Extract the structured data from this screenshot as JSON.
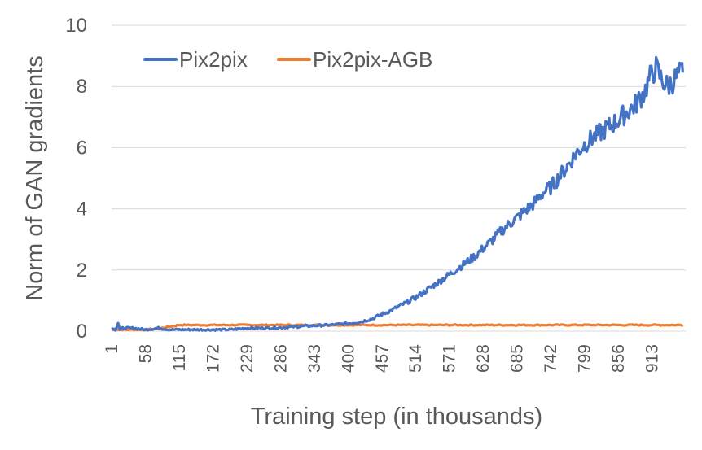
{
  "chart_data": {
    "type": "line",
    "title": "",
    "xlabel": "Training step (in thousands)",
    "ylabel": "Norm of GAN gradients",
    "ylim": [
      0,
      10
    ],
    "y_ticks": [
      "0",
      "2",
      "4",
      "6",
      "8",
      "10"
    ],
    "x_ticks": [
      "1",
      "58",
      "115",
      "172",
      "229",
      "286",
      "343",
      "400",
      "457",
      "514",
      "571",
      "628",
      "685",
      "742",
      "799",
      "856",
      "913"
    ],
    "xlim": [
      1,
      970
    ],
    "grid": "horizontal",
    "legend_position": "top-left",
    "series": [
      {
        "name": "Pix2pix",
        "color": "#4472c4",
        "points": [
          [
            1,
            0.1
          ],
          [
            8,
            0.05
          ],
          [
            12,
            0.3
          ],
          [
            15,
            0.05
          ],
          [
            20,
            0.1
          ],
          [
            30,
            0.1
          ],
          [
            40,
            0.1
          ],
          [
            58,
            0.05
          ],
          [
            80,
            0.1
          ],
          [
            100,
            0.05
          ],
          [
            115,
            0.05
          ],
          [
            140,
            0.05
          ],
          [
            172,
            0.05
          ],
          [
            200,
            0.05
          ],
          [
            229,
            0.1
          ],
          [
            260,
            0.1
          ],
          [
            286,
            0.12
          ],
          [
            315,
            0.15
          ],
          [
            343,
            0.18
          ],
          [
            370,
            0.2
          ],
          [
            400,
            0.25
          ],
          [
            420,
            0.3
          ],
          [
            440,
            0.4
          ],
          [
            457,
            0.55
          ],
          [
            470,
            0.65
          ],
          [
            485,
            0.8
          ],
          [
            500,
            0.95
          ],
          [
            514,
            1.1
          ],
          [
            530,
            1.3
          ],
          [
            545,
            1.5
          ],
          [
            560,
            1.7
          ],
          [
            571,
            1.85
          ],
          [
            585,
            2.05
          ],
          [
            600,
            2.25
          ],
          [
            614,
            2.45
          ],
          [
            628,
            2.7
          ],
          [
            645,
            3.0
          ],
          [
            660,
            3.3
          ],
          [
            675,
            3.55
          ],
          [
            685,
            3.7
          ],
          [
            700,
            3.95
          ],
          [
            715,
            4.2
          ],
          [
            728,
            4.5
          ],
          [
            742,
            4.7
          ],
          [
            755,
            5.0
          ],
          [
            770,
            5.4
          ],
          [
            785,
            5.8
          ],
          [
            799,
            6.1
          ],
          [
            812,
            6.3
          ],
          [
            827,
            6.5
          ],
          [
            842,
            6.7
          ],
          [
            856,
            6.9
          ],
          [
            870,
            7.15
          ],
          [
            885,
            7.4
          ],
          [
            900,
            7.8
          ],
          [
            910,
            8.3
          ],
          [
            920,
            8.6
          ],
          [
            930,
            8.2
          ],
          [
            940,
            8.0
          ],
          [
            950,
            8.2
          ],
          [
            958,
            8.4
          ],
          [
            965,
            8.45
          ]
        ]
      },
      {
        "name": "Pix2pix-AGB",
        "color": "#ed7d31",
        "points": [
          [
            1,
            0.05
          ],
          [
            30,
            0.05
          ],
          [
            58,
            0.05
          ],
          [
            80,
            0.08
          ],
          [
            100,
            0.15
          ],
          [
            115,
            0.2
          ],
          [
            172,
            0.2
          ],
          [
            229,
            0.2
          ],
          [
            286,
            0.2
          ],
          [
            343,
            0.2
          ],
          [
            400,
            0.2
          ],
          [
            457,
            0.2
          ],
          [
            514,
            0.2
          ],
          [
            571,
            0.2
          ],
          [
            628,
            0.2
          ],
          [
            685,
            0.2
          ],
          [
            742,
            0.2
          ],
          [
            799,
            0.2
          ],
          [
            856,
            0.2
          ],
          [
            913,
            0.2
          ],
          [
            965,
            0.2
          ]
        ]
      }
    ]
  }
}
